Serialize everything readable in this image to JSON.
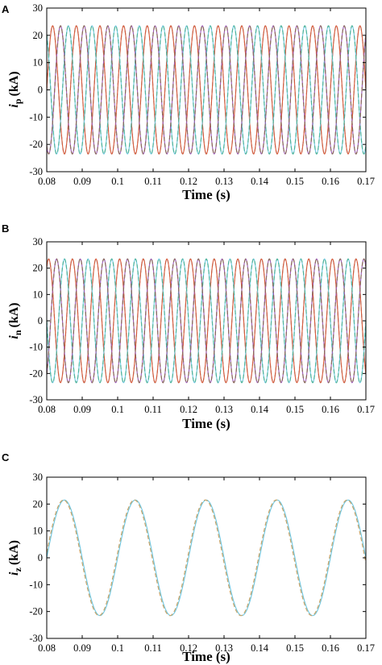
{
  "chart_data": [
    {
      "panel": "A",
      "type": "line",
      "ylabel_symbol": "i",
      "ylabel_sub": "p",
      "ylabel_unit": "(kA)",
      "xlabel": "Time (s)",
      "xlim": [
        0.08,
        0.17
      ],
      "ylim": [
        -30,
        30
      ],
      "xticks": [
        "0.08",
        "0.09",
        "0.1",
        "0.11",
        "0.12",
        "0.13",
        "0.14",
        "0.15",
        "0.16",
        "0.17"
      ],
      "yticks": [
        "30",
        "20",
        "10",
        "0",
        "-10",
        "-20",
        "-30"
      ],
      "series": [
        {
          "color": "#8c8c8c",
          "style": "dashed",
          "amplitude": 23.5,
          "frequency_hz": 150,
          "phase_deg": 0
        },
        {
          "color": "#d85a3a",
          "style": "solid",
          "amplitude": 23.5,
          "frequency_hz": 150,
          "phase_deg": 0
        },
        {
          "color": "#6ec6e0",
          "style": "solid",
          "amplitude": 23.5,
          "frequency_hz": 150,
          "phase_deg": 120
        },
        {
          "color": "#4fb39a",
          "style": "dashed",
          "amplitude": 23.5,
          "frequency_hz": 150,
          "phase_deg": 120
        },
        {
          "color": "#9b59b6",
          "style": "solid",
          "amplitude": 23.5,
          "frequency_hz": 150,
          "phase_deg": 240
        },
        {
          "color": "#8a6a5a",
          "style": "dashed",
          "amplitude": 23.5,
          "frequency_hz": 150,
          "phase_deg": 240
        }
      ]
    },
    {
      "panel": "B",
      "type": "line",
      "ylabel_symbol": "i",
      "ylabel_sub": "n",
      "ylabel_unit": "(kA)",
      "xlabel": "Time (s)",
      "xlim": [
        0.08,
        0.17
      ],
      "ylim": [
        -30,
        30
      ],
      "xticks": [
        "0.08",
        "0.09",
        "0.1",
        "0.11",
        "0.12",
        "0.13",
        "0.14",
        "0.15",
        "0.16",
        "0.17"
      ],
      "yticks": [
        "30",
        "20",
        "10",
        "0",
        "-10",
        "-20",
        "-30"
      ],
      "series": [
        {
          "color": "#8c8c8c",
          "style": "dashed",
          "amplitude": 23.5,
          "frequency_hz": 150,
          "phase_deg": 60
        },
        {
          "color": "#d85a3a",
          "style": "solid",
          "amplitude": 23.5,
          "frequency_hz": 150,
          "phase_deg": 60
        },
        {
          "color": "#6ec6e0",
          "style": "solid",
          "amplitude": 23.5,
          "frequency_hz": 150,
          "phase_deg": 180
        },
        {
          "color": "#4fb39a",
          "style": "dashed",
          "amplitude": 23.5,
          "frequency_hz": 150,
          "phase_deg": 180
        },
        {
          "color": "#9b59b6",
          "style": "solid",
          "amplitude": 23.5,
          "frequency_hz": 150,
          "phase_deg": 300
        },
        {
          "color": "#8a6a5a",
          "style": "dashed",
          "amplitude": 23.5,
          "frequency_hz": 150,
          "phase_deg": 300
        }
      ]
    },
    {
      "panel": "C",
      "type": "line",
      "ylabel_symbol": "i",
      "ylabel_sub": "z",
      "ylabel_unit": "(kA)",
      "xlabel": "Time (s)",
      "xlim": [
        0.08,
        0.17
      ],
      "ylim": [
        -30,
        30
      ],
      "xticks": [
        "0.08",
        "0.09",
        "0.1",
        "0.11",
        "0.12",
        "0.13",
        "0.14",
        "0.15",
        "0.16",
        "0.17"
      ],
      "yticks": [
        "30",
        "20",
        "10",
        "0",
        "-10",
        "-20",
        "-30"
      ],
      "series": [
        {
          "color": "#6ec6e0",
          "style": "solid",
          "amplitude": 21.5,
          "frequency_hz": 50,
          "phase_deg": 0
        },
        {
          "color": "#c9a56a",
          "style": "dashed",
          "amplitude": 21.5,
          "frequency_hz": 50,
          "phase_deg": 5
        }
      ]
    }
  ]
}
